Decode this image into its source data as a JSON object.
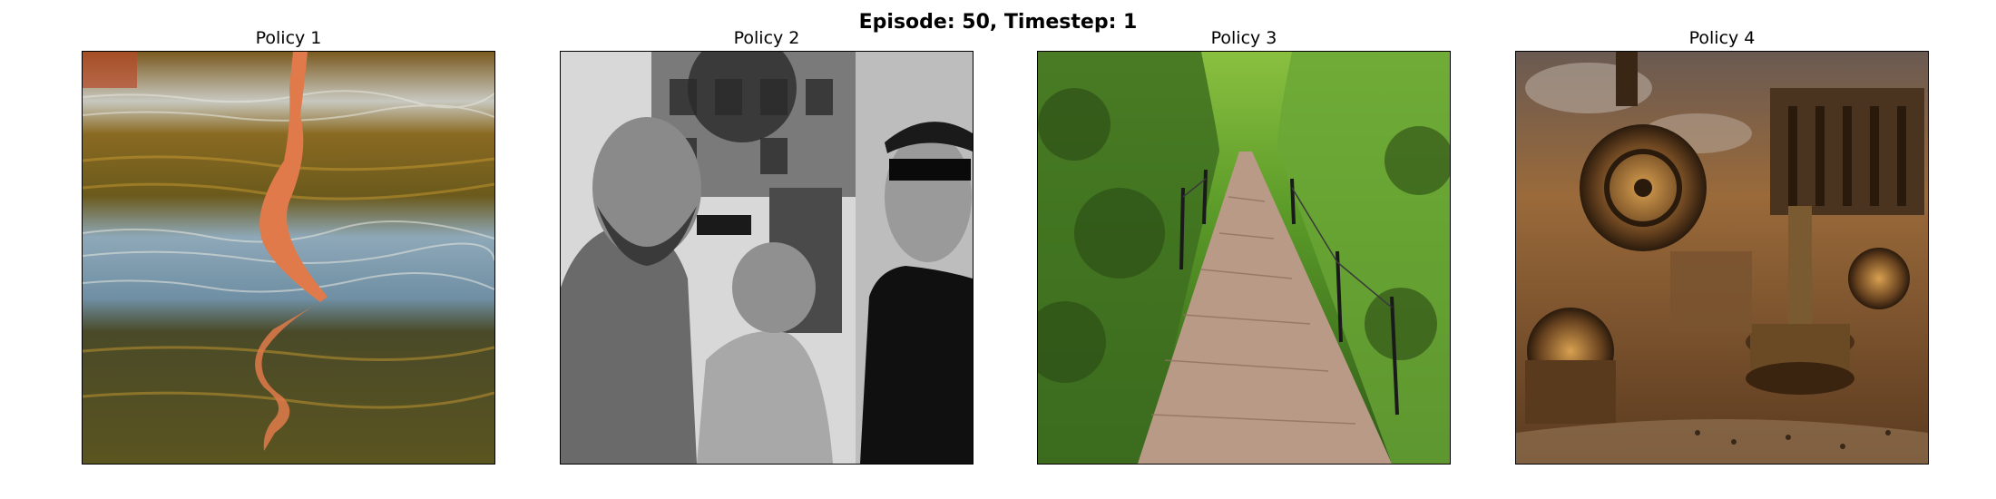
{
  "figure": {
    "suptitle": "Episode: 50, Timestep: 1"
  },
  "panels": [
    {
      "title": "Policy 1"
    },
    {
      "title": "Policy 2"
    },
    {
      "title": "Policy 3"
    },
    {
      "title": "Policy 4"
    }
  ],
  "colors": {
    "background": "#ffffff",
    "frame": "#000000"
  }
}
